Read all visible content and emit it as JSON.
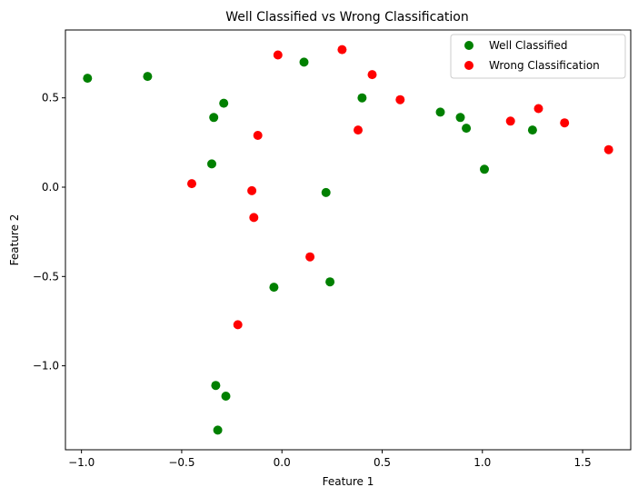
{
  "chart_data": {
    "type": "scatter",
    "title": "Well Classified vs Wrong Classification",
    "xlabel": "Feature 1",
    "ylabel": "Feature 2",
    "xlim": [
      -1.08,
      1.74
    ],
    "ylim": [
      -1.47,
      0.88
    ],
    "xticks": [
      -1.0,
      -0.5,
      0.0,
      0.5,
      1.0,
      1.5
    ],
    "xtick_labels": [
      "−1.0",
      "−0.5",
      "0.0",
      "0.5",
      "1.0",
      "1.5"
    ],
    "yticks": [
      -1.0,
      -0.5,
      0.0,
      0.5
    ],
    "ytick_labels": [
      "−1.0",
      "−0.5",
      "0.0",
      "0.5"
    ],
    "grid": false,
    "legend_position": "top-right",
    "series": [
      {
        "name": "Well Classified",
        "color": "#008000",
        "points": [
          {
            "x": -0.97,
            "y": 0.61
          },
          {
            "x": -0.67,
            "y": 0.62
          },
          {
            "x": -0.34,
            "y": 0.39
          },
          {
            "x": -0.29,
            "y": 0.47
          },
          {
            "x": -0.35,
            "y": 0.13
          },
          {
            "x": 0.11,
            "y": 0.7
          },
          {
            "x": 0.4,
            "y": 0.5
          },
          {
            "x": 0.22,
            "y": -0.03
          },
          {
            "x": 0.24,
            "y": -0.53
          },
          {
            "x": -0.04,
            "y": -0.56
          },
          {
            "x": 0.79,
            "y": 0.42
          },
          {
            "x": 0.89,
            "y": 0.39
          },
          {
            "x": 0.92,
            "y": 0.33
          },
          {
            "x": 1.01,
            "y": 0.1
          },
          {
            "x": 1.25,
            "y": 0.32
          },
          {
            "x": -0.33,
            "y": -1.11
          },
          {
            "x": -0.28,
            "y": -1.17
          },
          {
            "x": -0.32,
            "y": -1.36
          }
        ]
      },
      {
        "name": "Wrong Classification",
        "color": "#ff0000",
        "points": [
          {
            "x": -0.02,
            "y": 0.74
          },
          {
            "x": 0.3,
            "y": 0.77
          },
          {
            "x": 0.45,
            "y": 0.63
          },
          {
            "x": 0.59,
            "y": 0.49
          },
          {
            "x": 0.38,
            "y": 0.32
          },
          {
            "x": -0.12,
            "y": 0.29
          },
          {
            "x": -0.45,
            "y": 0.02
          },
          {
            "x": -0.15,
            "y": -0.02
          },
          {
            "x": -0.14,
            "y": -0.17
          },
          {
            "x": 0.14,
            "y": -0.39
          },
          {
            "x": -0.22,
            "y": -0.77
          },
          {
            "x": 1.14,
            "y": 0.37
          },
          {
            "x": 1.28,
            "y": 0.44
          },
          {
            "x": 1.41,
            "y": 0.36
          },
          {
            "x": 1.63,
            "y": 0.21
          }
        ]
      }
    ]
  }
}
